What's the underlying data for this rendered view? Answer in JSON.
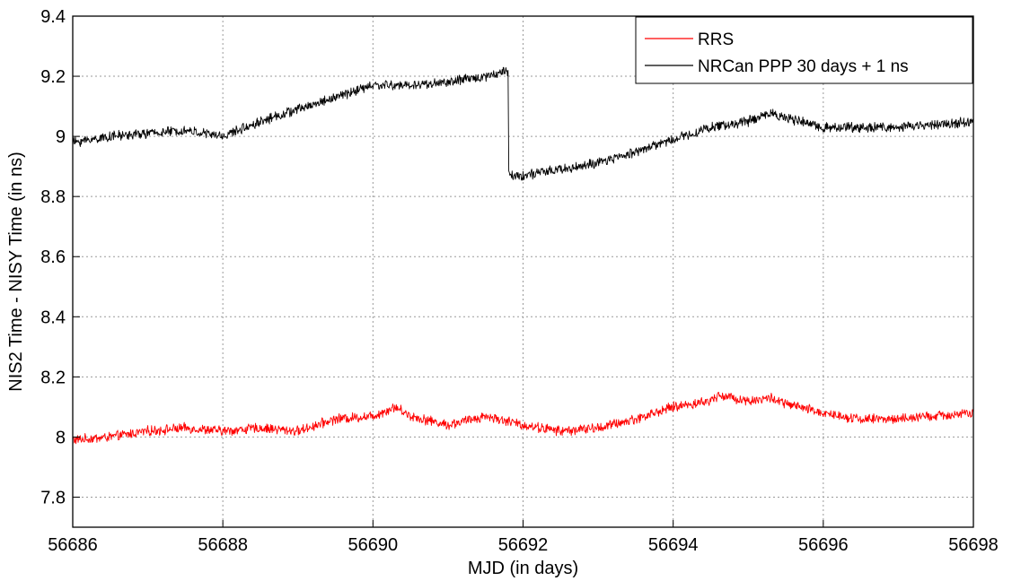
{
  "chart_data": {
    "type": "line",
    "title": "",
    "xlabel": "MJD (in days)",
    "ylabel": "NIS2 Time - NISY Time (in ns)",
    "xlim": [
      56686,
      56698
    ],
    "ylim": [
      7.7,
      9.4
    ],
    "x_ticks": [
      56686,
      56688,
      56690,
      56692,
      56694,
      56696,
      56698
    ],
    "y_ticks": [
      7.8,
      8,
      8.2,
      8.4,
      8.6,
      8.8,
      9,
      9.2,
      9.4
    ],
    "x_tick_labels": [
      "56686",
      "56688",
      "56690",
      "56692",
      "56694",
      "56696",
      "56698"
    ],
    "y_tick_labels": [
      "7.8",
      "8",
      "8.2",
      "8.4",
      "8.6",
      "8.8",
      "9",
      "9.2",
      "9.4"
    ],
    "grid": true,
    "legend_position": "top-right",
    "series": [
      {
        "name": "RRS",
        "color": "#ff0000",
        "x": [
          56686,
          56686.5,
          56687,
          56687.5,
          56688,
          56688.5,
          56689,
          56689.5,
          56690,
          56690.3,
          56690.5,
          56691,
          56691.5,
          56692,
          56692.5,
          56693,
          56693.5,
          56694,
          56694.5,
          56694.6,
          56695,
          56695.3,
          56695.5,
          56696,
          56696.5,
          56697,
          56697.5,
          56698
        ],
        "y": [
          7.99,
          8.0,
          8.02,
          8.03,
          8.02,
          8.03,
          8.02,
          8.06,
          8.07,
          8.1,
          8.07,
          8.04,
          8.07,
          8.04,
          8.02,
          8.03,
          8.06,
          8.1,
          8.12,
          8.14,
          8.12,
          8.13,
          8.11,
          8.08,
          8.06,
          8.06,
          8.07,
          8.08
        ]
      },
      {
        "name": "NRCan PPP 30 days + 1 ns",
        "color": "#000000",
        "x": [
          56686,
          56686.5,
          56687,
          56687.5,
          56688,
          56688.5,
          56689,
          56689.5,
          56690,
          56690.5,
          56691,
          56691.5,
          56691.8,
          56691.81,
          56692,
          56692.5,
          56693,
          56693.5,
          56694,
          56694.5,
          56695,
          56695.3,
          56695.5,
          56696,
          56696.5,
          56697,
          56697.5,
          56698
        ],
        "y": [
          8.98,
          9.0,
          9.01,
          9.02,
          9.0,
          9.05,
          9.09,
          9.13,
          9.17,
          9.17,
          9.18,
          9.2,
          9.22,
          8.87,
          8.87,
          8.89,
          8.91,
          8.95,
          8.99,
          9.03,
          9.05,
          9.08,
          9.06,
          9.03,
          9.03,
          9.03,
          9.04,
          9.05
        ]
      }
    ]
  }
}
